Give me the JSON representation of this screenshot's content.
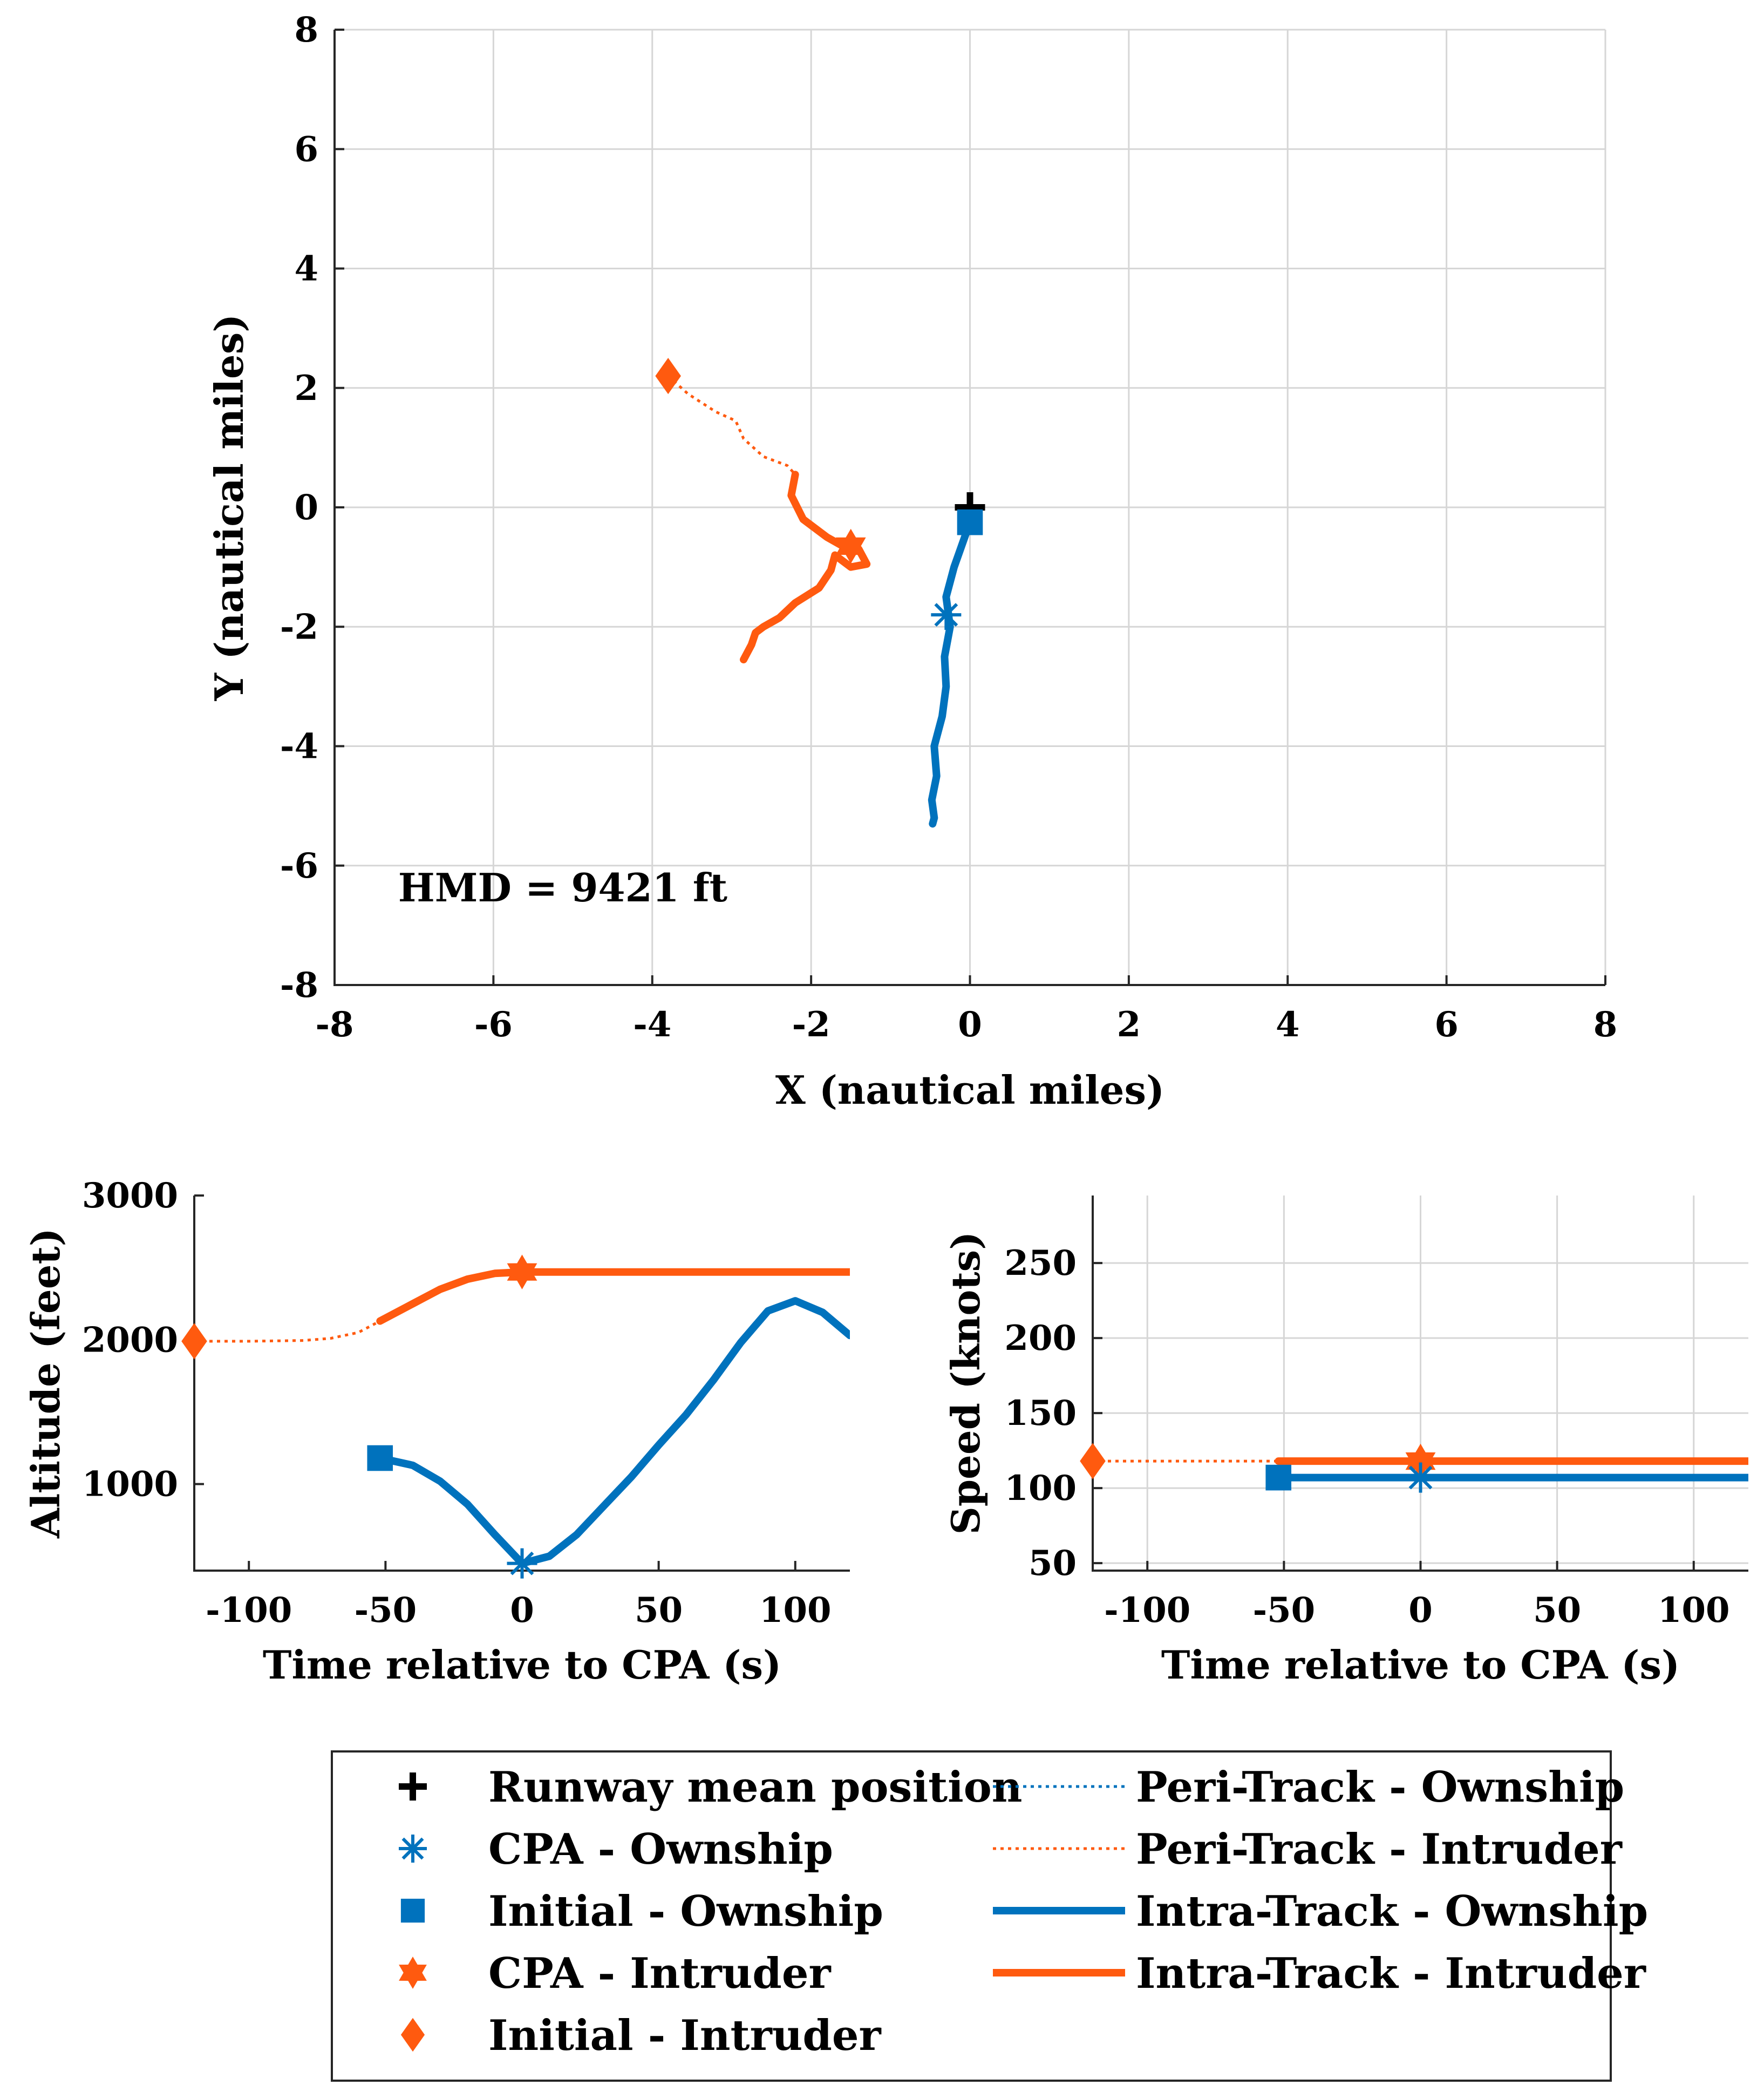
{
  "colors": {
    "ownship": "#0072BD",
    "intruder": "#FF5A0F",
    "runway": "#000000"
  },
  "chart_data": [
    {
      "type": "line",
      "name": "map",
      "xlabel": "X (nautical miles)",
      "ylabel": "Y (nautical miles)",
      "xlim": [
        -8,
        8
      ],
      "ylim": [
        -8,
        8
      ],
      "xticks": [
        -8,
        -6,
        -4,
        -2,
        0,
        2,
        4,
        6,
        8
      ],
      "yticks": [
        -8,
        -6,
        -4,
        -2,
        0,
        2,
        4,
        6,
        8
      ],
      "grid": true,
      "annotation": "HMD = 9421 ft",
      "series": [
        {
          "name": "Peri-Track - Intruder",
          "style": "dotted",
          "color": "intruder",
          "x": [
            -3.8,
            -3.55,
            -3.2,
            -2.95,
            -2.85,
            -2.6,
            -2.3,
            -2.2
          ],
          "y": [
            2.2,
            1.9,
            1.6,
            1.45,
            1.15,
            0.85,
            0.7,
            0.55
          ]
        },
        {
          "name": "Intra-Track - Intruder",
          "style": "solid",
          "color": "intruder",
          "x": [
            -2.2,
            -2.25,
            -2.1,
            -1.8,
            -1.6,
            -1.4,
            -1.3,
            -1.5,
            -1.7,
            -1.75,
            -1.9,
            -2.2,
            -2.4,
            -2.6,
            -2.7,
            -2.75,
            -2.85
          ],
          "y": [
            0.55,
            0.2,
            -0.2,
            -0.5,
            -0.65,
            -0.7,
            -0.95,
            -1.0,
            -0.8,
            -1.05,
            -1.35,
            -1.6,
            -1.85,
            -2.0,
            -2.1,
            -2.3,
            -2.55
          ]
        },
        {
          "name": "Intra-Track - Ownship",
          "style": "solid",
          "color": "ownship",
          "x": [
            0.0,
            -0.2,
            -0.3,
            -0.25,
            -0.32,
            -0.3,
            -0.35,
            -0.45,
            -0.42,
            -0.48,
            -0.45,
            -0.47
          ],
          "y": [
            -0.25,
            -1.0,
            -1.5,
            -2.0,
            -2.5,
            -3.0,
            -3.5,
            -4.0,
            -4.5,
            -4.9,
            -5.2,
            -5.3
          ]
        }
      ],
      "markers": [
        {
          "name": "Runway mean position",
          "shape": "plus",
          "color": "runway",
          "x": 0.0,
          "y": 0.0
        },
        {
          "name": "Initial - Ownship",
          "shape": "square",
          "color": "ownship",
          "x": 0.0,
          "y": -0.25
        },
        {
          "name": "CPA - Ownship",
          "shape": "asterisk",
          "color": "ownship",
          "x": -0.3,
          "y": -1.8
        },
        {
          "name": "Initial - Intruder",
          "shape": "diamond",
          "color": "intruder",
          "x": -3.8,
          "y": 2.2
        },
        {
          "name": "CPA - Intruder",
          "shape": "hexagram",
          "color": "intruder",
          "x": -1.5,
          "y": -0.65
        }
      ]
    },
    {
      "type": "line",
      "name": "altitude",
      "xlabel": "Time relative to CPA (s)",
      "ylabel": "Altitude (feet)",
      "xlim": [
        -120,
        120
      ],
      "ylim": [
        400,
        3000
      ],
      "xticks": [
        -100,
        -50,
        0,
        50,
        100
      ],
      "yticks": [
        1000,
        2000,
        3000
      ],
      "grid": false,
      "series": [
        {
          "name": "Peri-Track - Intruder",
          "style": "dotted",
          "color": "intruder",
          "x": [
            -120,
            -100,
            -80,
            -70,
            -60,
            -52
          ],
          "y": [
            1990,
            1990,
            1995,
            2010,
            2050,
            2130
          ]
        },
        {
          "name": "Intra-Track - Intruder",
          "style": "solid",
          "color": "intruder",
          "x": [
            -52,
            -40,
            -30,
            -20,
            -10,
            0,
            20,
            60,
            120
          ],
          "y": [
            2130,
            2250,
            2350,
            2420,
            2460,
            2470,
            2470,
            2470,
            2470
          ]
        },
        {
          "name": "Intra-Track - Ownship",
          "style": "solid",
          "color": "ownship",
          "x": [
            -52,
            -40,
            -30,
            -20,
            -10,
            0,
            10,
            20,
            30,
            40,
            50,
            60,
            70,
            80,
            90,
            100,
            110,
            120
          ],
          "y": [
            1180,
            1130,
            1020,
            860,
            650,
            450,
            500,
            650,
            850,
            1050,
            1270,
            1480,
            1720,
            1980,
            2200,
            2270,
            2190,
            2030
          ]
        }
      ],
      "markers": [
        {
          "name": "Initial - Intruder",
          "shape": "diamond",
          "color": "intruder",
          "x": -120,
          "y": 1990
        },
        {
          "name": "CPA - Intruder",
          "shape": "hexagram",
          "color": "intruder",
          "x": 0,
          "y": 2470
        },
        {
          "name": "Initial - Ownship",
          "shape": "square",
          "color": "ownship",
          "x": -52,
          "y": 1180
        },
        {
          "name": "CPA - Ownship",
          "shape": "asterisk",
          "color": "ownship",
          "x": 0,
          "y": 450
        }
      ]
    },
    {
      "type": "line",
      "name": "speed",
      "xlabel": "Time relative to CPA (s)",
      "ylabel": "Speed (knots)",
      "xlim": [
        -120,
        120
      ],
      "ylim": [
        45,
        295
      ],
      "xticks": [
        -100,
        -50,
        0,
        50,
        100
      ],
      "yticks": [
        50,
        100,
        150,
        200,
        250
      ],
      "grid": true,
      "series": [
        {
          "name": "Peri-Track - Intruder",
          "style": "dotted",
          "color": "intruder",
          "x": [
            -120,
            -52
          ],
          "y": [
            118,
            118
          ]
        },
        {
          "name": "Intra-Track - Intruder",
          "style": "solid",
          "color": "intruder",
          "x": [
            -52,
            120
          ],
          "y": [
            118,
            118
          ]
        },
        {
          "name": "Intra-Track - Ownship",
          "style": "solid",
          "color": "ownship",
          "x": [
            -52,
            120
          ],
          "y": [
            107,
            107
          ]
        }
      ],
      "markers": [
        {
          "name": "Initial - Intruder",
          "shape": "diamond",
          "color": "intruder",
          "x": -120,
          "y": 118
        },
        {
          "name": "CPA - Intruder",
          "shape": "hexagram",
          "color": "intruder",
          "x": 0,
          "y": 118
        },
        {
          "name": "Initial - Ownship",
          "shape": "square",
          "color": "ownship",
          "x": -52,
          "y": 107
        },
        {
          "name": "CPA - Ownship",
          "shape": "asterisk",
          "color": "ownship",
          "x": 0,
          "y": 107
        }
      ]
    }
  ],
  "legend": {
    "left": [
      {
        "label": "Runway mean position",
        "symbol": "plus",
        "color": "runway"
      },
      {
        "label": "CPA - Ownship",
        "symbol": "asterisk",
        "color": "ownship"
      },
      {
        "label": "Initial - Ownship",
        "symbol": "square",
        "color": "ownship"
      },
      {
        "label": "CPA - Intruder",
        "symbol": "hexagram",
        "color": "intruder"
      },
      {
        "label": "Initial - Intruder",
        "symbol": "diamond",
        "color": "intruder"
      }
    ],
    "right": [
      {
        "label": "Peri-Track - Ownship",
        "symbol": "dotted",
        "color": "ownship"
      },
      {
        "label": "Peri-Track - Intruder",
        "symbol": "dotted",
        "color": "intruder"
      },
      {
        "label": "Intra-Track - Ownship",
        "symbol": "solid",
        "color": "ownship"
      },
      {
        "label": "Intra-Track - Intruder",
        "symbol": "solid",
        "color": "intruder"
      }
    ]
  }
}
